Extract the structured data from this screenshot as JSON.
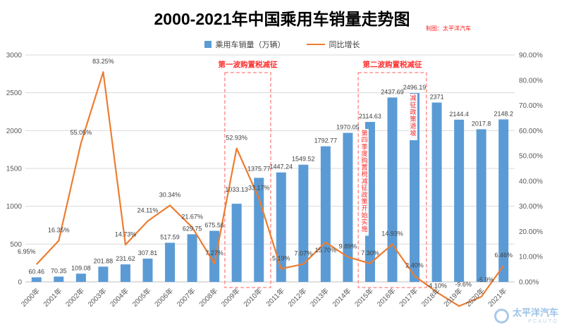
{
  "title": "2000-2021年中国乘用车销量走势图",
  "credit": "制图：太平洋汽车",
  "colors": {
    "bar": "#5B9BD5",
    "line": "#ED7D31",
    "annotation": "#FF2E2E",
    "annotation_box": "#FF8080",
    "grid": "#D9D9D9",
    "axis_text": "#595959",
    "label_text": "#3F3F3F",
    "watermark": "#9DC3E6"
  },
  "legend": {
    "items": [
      {
        "label": "乘用车销量（万辆）",
        "type": "bar"
      },
      {
        "label": "同比增长",
        "type": "line"
      }
    ]
  },
  "watermark": {
    "name": "太平洋汽车",
    "sub": "PCAUTO"
  },
  "chart_data": {
    "type": "bar+line combo",
    "title": "2000-2021年中国乘用车销量走势图",
    "categories": [
      "2000年",
      "2001年",
      "2002年",
      "2003年",
      "2004年",
      "2005年",
      "2006年",
      "2007年",
      "2008年",
      "2009年",
      "2010年",
      "2011年",
      "2012年",
      "2013年",
      "2014年",
      "2015年",
      "2016年",
      "2017年",
      "2018年",
      "2019年",
      "2020年",
      "2021年"
    ],
    "series": [
      {
        "name": "乘用车销量（万辆）",
        "type": "bar",
        "axis": "left",
        "values": [
          60.46,
          70.35,
          109.08,
          201.88,
          231.62,
          307.81,
          517.59,
          629.75,
          675.56,
          1033.13,
          1375.77,
          1447.24,
          1549.52,
          1792.77,
          1970.05,
          2114.63,
          2437.69,
          2496.19,
          2371,
          2144.4,
          2017.8,
          2148.2
        ],
        "value_labels": [
          "60.46",
          "70.35",
          "109.08",
          "201.88",
          "231.62",
          "307.81",
          "517.59",
          "629.75",
          "675.56",
          "1033.13",
          "1375.77",
          "1447.24",
          "1549.52",
          "1792.77",
          "1970.05",
          "2114.63",
          "2437.69",
          "2496.19",
          "2371",
          "2144.4",
          "2017.8",
          "2148.2"
        ]
      },
      {
        "name": "同比增长",
        "type": "line",
        "axis": "right",
        "values_percent": [
          6.95,
          16.35,
          55.05,
          83.25,
          14.73,
          24.11,
          30.34,
          21.67,
          7.27,
          52.93,
          33.17,
          5.19,
          7.07,
          15.7,
          9.89,
          7.3,
          14.93,
          2.4,
          -4.1,
          -9.6,
          -5.9,
          6.46
        ],
        "value_labels": [
          "6.95%",
          "16.35%",
          "55.05%",
          "83.25%",
          "14.73%",
          "24.11%",
          "30.34%",
          "21.67%",
          "7.27%",
          "52.93%",
          "33.17%",
          "5.19%",
          "7.07%",
          "15.70%",
          "9.89%",
          "7.30%",
          "14.93%",
          "2.40%",
          "-4.10%",
          "-9.6%",
          "-5.9%",
          "6.46%"
        ]
      }
    ],
    "left_axis": {
      "min": 0,
      "max": 3000,
      "step": 500,
      "ticks": [
        "0",
        "500",
        "1000",
        "1500",
        "2000",
        "2500",
        "3000"
      ]
    },
    "right_axis": {
      "min": 0,
      "max": 90,
      "step": 10,
      "format": "percent",
      "ticks": [
        "0.00%",
        "10.00%",
        "20.00%",
        "30.00%",
        "40.00%",
        "50.00%",
        "60.00%",
        "70.00%",
        "80.00%",
        "90.00%"
      ]
    },
    "grid": true,
    "legend_position": "top",
    "annotations": {
      "boxes": [
        {
          "text": "第一波购置税减征",
          "from": "2009年",
          "to": "2010年"
        },
        {
          "text": "第二波购置税减征",
          "from": "2015年",
          "to": "2017年"
        }
      ],
      "vertical_notes": [
        {
          "text": "第四季度购置税减征政策开始实施",
          "at": "2015年"
        },
        {
          "text": "减征政策退坡",
          "at": "2017年"
        }
      ]
    }
  }
}
